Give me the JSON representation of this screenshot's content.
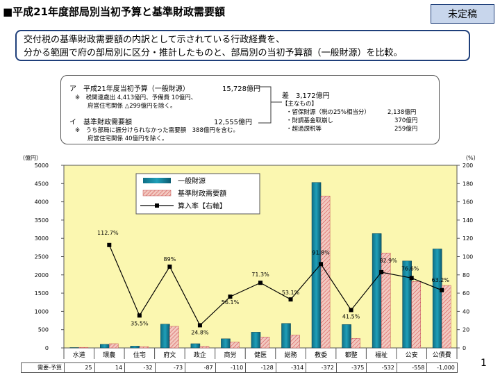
{
  "header": {
    "title": "■平成21年度部局別当初予算と基準財政需要額",
    "badge": "未定稿"
  },
  "summary": {
    "line1": "交付税の基準財政需要額の内訳として示されている行政経費を、",
    "line2": "分かる範囲で府の部局別に区分・推計したものと、部局別の当初予算額（一般財源）を比較。"
  },
  "info": {
    "a_label": "ア　平成21年度当初予算（一般財源）",
    "a_value": "15,728億円",
    "a_note1": "※　税関連歳出 4,413億円、予備費 10億円、",
    "a_note2": "府営住宅関係 △299億円を除く。",
    "i_label": "イ　基準財政需要額",
    "i_value": "12,555億円",
    "i_note1": "※　うち部局に振分けられなかった需要額　388億円を含む。",
    "i_note2": "府営住宅関係 40億円を除く。",
    "diff_label": "差　3,172億円",
    "main_label": "【主なもの】",
    "items": [
      {
        "name": "・留保財源（税の25%相当分）",
        "value": "2,138億円"
      },
      {
        "name": "・財調基金取崩し",
        "value": "370億円"
      },
      {
        "name": "・超過課税等",
        "value": "259億円"
      }
    ]
  },
  "chart_data": {
    "type": "bar",
    "categories": [
      "水道",
      "環農",
      "住宅",
      "府文",
      "政企",
      "商労",
      "健医",
      "総務",
      "教委",
      "都整",
      "福祉",
      "公安",
      "公債費"
    ],
    "series": [
      {
        "name": "一般財源",
        "values": [
          10,
          100,
          50,
          650,
          115,
          250,
          430,
          670,
          4530,
          640,
          3130,
          2380,
          2710
        ],
        "color": "#1f9fb8"
      },
      {
        "name": "基準財政需要額",
        "values": [
          15,
          115,
          35,
          590,
          45,
          160,
          300,
          355,
          4160,
          260,
          2600,
          1820,
          1710
        ],
        "color": "#f2c8c0"
      },
      {
        "name": "算入率【右軸】",
        "axis": "right",
        "values": [
          null,
          112.7,
          35.5,
          89,
          24.8,
          56.1,
          71.3,
          53.1,
          91.8,
          41.5,
          82.9,
          76.6,
          63.2
        ],
        "color": "#000000"
      }
    ],
    "rate_labels": [
      "",
      "112.7%",
      "35.5%",
      "89%",
      "24.8%",
      "56.1%",
      "71.3%",
      "53.1%",
      "91.8%",
      "41.5%",
      "82.9%",
      "76.6%",
      "63.2%"
    ],
    "ylabel": "（億円）",
    "ylabel_right": "（%）",
    "ylim": [
      0,
      5000
    ],
    "ylim_right": [
      0,
      200
    ],
    "yticks": [
      "0",
      "500",
      "1000",
      "1500",
      "2000",
      "2500",
      "3000",
      "3500",
      "4000",
      "4500",
      "5000"
    ],
    "yticks_right": [
      "0",
      "20",
      "40",
      "60",
      "80",
      "100",
      "120",
      "140",
      "160",
      "180",
      "200"
    ],
    "legend_position": "top-left",
    "grid": false,
    "plot_bg": "#fbf7b0"
  },
  "diff_row": {
    "label": "需要-予算",
    "values": [
      "25",
      "14",
      "-32",
      "-73",
      "-87",
      "-110",
      "-128",
      "-314",
      "-372",
      "-375",
      "-532",
      "-558",
      "-1,000"
    ]
  },
  "page_number": "1"
}
